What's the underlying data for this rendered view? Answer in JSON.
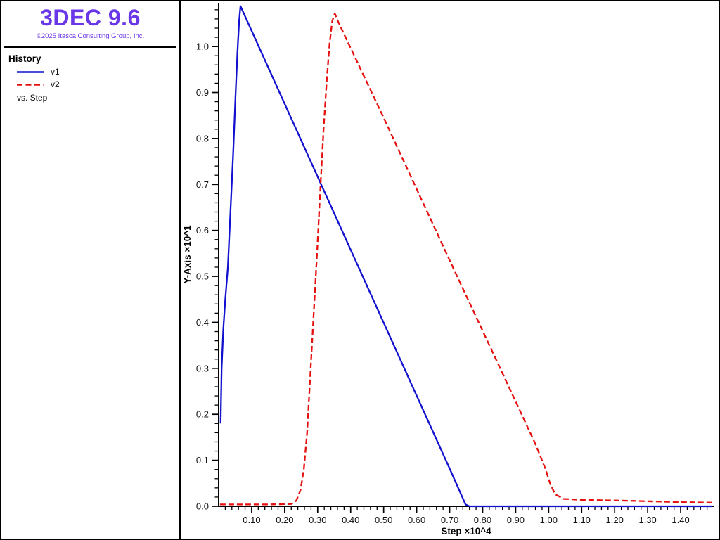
{
  "app": {
    "title": "3DEC 9.6",
    "copyright": "©2025 Itasca Consulting Group, Inc.",
    "brand_color": "#6936e8"
  },
  "sidebar": {
    "section_title": "History",
    "legend": [
      {
        "label": "v1",
        "color": "#1111cf",
        "style": "solid"
      },
      {
        "label": "v2",
        "color": "#e60f0f",
        "style": "dashed"
      }
    ],
    "vs_label": "vs. Step"
  },
  "chart_data": {
    "type": "line",
    "title": "",
    "xlabel": "Step ×10^4",
    "ylabel": "Y-Axis ×10^1",
    "xlim": [
      0,
      1.5
    ],
    "ylim": [
      0,
      1.095
    ],
    "grid": false,
    "legend_position": "sidebar",
    "axis_color": "#000000",
    "tick_label_color": "#111111",
    "minor_tick_step": 0.02,
    "x_tick_values": [
      0.1,
      0.2,
      0.3,
      0.4,
      0.5,
      0.6,
      0.7,
      0.8,
      0.9,
      1.0,
      1.1,
      1.2,
      1.3,
      1.4
    ],
    "x_tick_labels": [
      "0.10",
      "0.20",
      "0.30",
      "0.40",
      "0.50",
      "0.60",
      "0.70",
      "0.80",
      "0.90",
      "1.00",
      "1.10",
      "1.20",
      "1.30",
      "1.40"
    ],
    "y_tick_values": [
      0.0,
      0.1,
      0.2,
      0.3,
      0.4,
      0.5,
      0.6,
      0.7,
      0.8,
      0.9,
      1.0
    ],
    "y_tick_labels": [
      "0.0",
      "0.1",
      "0.2",
      "0.3",
      "0.4",
      "0.5",
      "0.6",
      "0.7",
      "0.8",
      "0.9",
      "1.0"
    ],
    "series": [
      {
        "name": "v1",
        "color": "#1111cf",
        "style": "solid",
        "points": [
          [
            0.006,
            0.18
          ],
          [
            0.009,
            0.3
          ],
          [
            0.014,
            0.385
          ],
          [
            0.02,
            0.45
          ],
          [
            0.028,
            0.52
          ],
          [
            0.036,
            0.645
          ],
          [
            0.044,
            0.77
          ],
          [
            0.051,
            0.89
          ],
          [
            0.057,
            0.99
          ],
          [
            0.062,
            1.055
          ],
          [
            0.066,
            1.088
          ],
          [
            0.4,
            0.558
          ],
          [
            0.7,
            0.082
          ],
          [
            0.748,
            0.004
          ],
          [
            0.76,
            0.0
          ],
          [
            1.495,
            0.0
          ]
        ]
      },
      {
        "name": "v2",
        "color": "#e60f0f",
        "style": "dashed",
        "points": [
          [
            0.004,
            0.004
          ],
          [
            0.15,
            0.004
          ],
          [
            0.22,
            0.005
          ],
          [
            0.235,
            0.012
          ],
          [
            0.248,
            0.035
          ],
          [
            0.258,
            0.08
          ],
          [
            0.268,
            0.16
          ],
          [
            0.278,
            0.29
          ],
          [
            0.288,
            0.42
          ],
          [
            0.298,
            0.55
          ],
          [
            0.308,
            0.69
          ],
          [
            0.318,
            0.82
          ],
          [
            0.328,
            0.93
          ],
          [
            0.336,
            1.005
          ],
          [
            0.344,
            1.055
          ],
          [
            0.352,
            1.072
          ],
          [
            0.36,
            1.057
          ],
          [
            0.5,
            0.845
          ],
          [
            0.7,
            0.535
          ],
          [
            0.9,
            0.228
          ],
          [
            0.96,
            0.135
          ],
          [
            0.99,
            0.082
          ],
          [
            1.005,
            0.048
          ],
          [
            1.02,
            0.026
          ],
          [
            1.045,
            0.016
          ],
          [
            1.1,
            0.014
          ],
          [
            1.25,
            0.012
          ],
          [
            1.4,
            0.009
          ],
          [
            1.495,
            0.008
          ]
        ]
      }
    ]
  }
}
